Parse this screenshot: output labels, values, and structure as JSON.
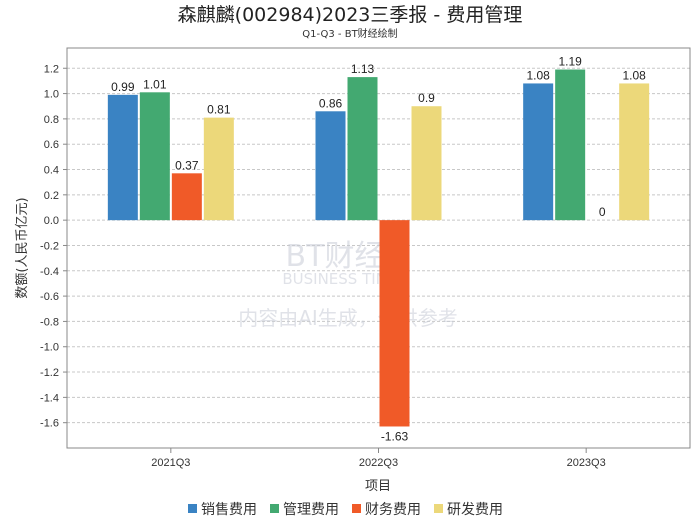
{
  "chart_data": {
    "type": "bar",
    "title": "森麒麟(002984)2023三季报 - 费用管理",
    "subtitle": "Q1-Q3 - BT财经绘制",
    "xlabel": "项目",
    "ylabel": "数额(人民币亿元)",
    "categories": [
      "2021Q3",
      "2022Q3",
      "2023Q3"
    ],
    "series": [
      {
        "name": "销售费用",
        "color": "#3a83c3",
        "values": [
          0.99,
          0.86,
          1.08
        ]
      },
      {
        "name": "管理费用",
        "color": "#43a971",
        "values": [
          1.01,
          1.13,
          1.19
        ]
      },
      {
        "name": "财务费用",
        "color": "#f05a28",
        "values": [
          0.37,
          -1.63,
          0
        ]
      },
      {
        "name": "研发费用",
        "color": "#ecd87a",
        "values": [
          0.81,
          0.9,
          1.08
        ]
      }
    ],
    "yticks": [
      "-1.6",
      "-1.4",
      "-1.2",
      "-1.0",
      "-0.8",
      "-0.6",
      "-0.4",
      "-0.2",
      "0.0",
      "0.2",
      "0.4",
      "0.6",
      "0.8",
      "1.0",
      "1.2"
    ],
    "ylim": [
      -1.8,
      1.36
    ],
    "grid": true,
    "legend_position": "bottom"
  },
  "watermark": {
    "brand": "BT财经",
    "brand_en": "BUSINESS TIMES",
    "notice": "内容由AI生成，仅供参考"
  }
}
